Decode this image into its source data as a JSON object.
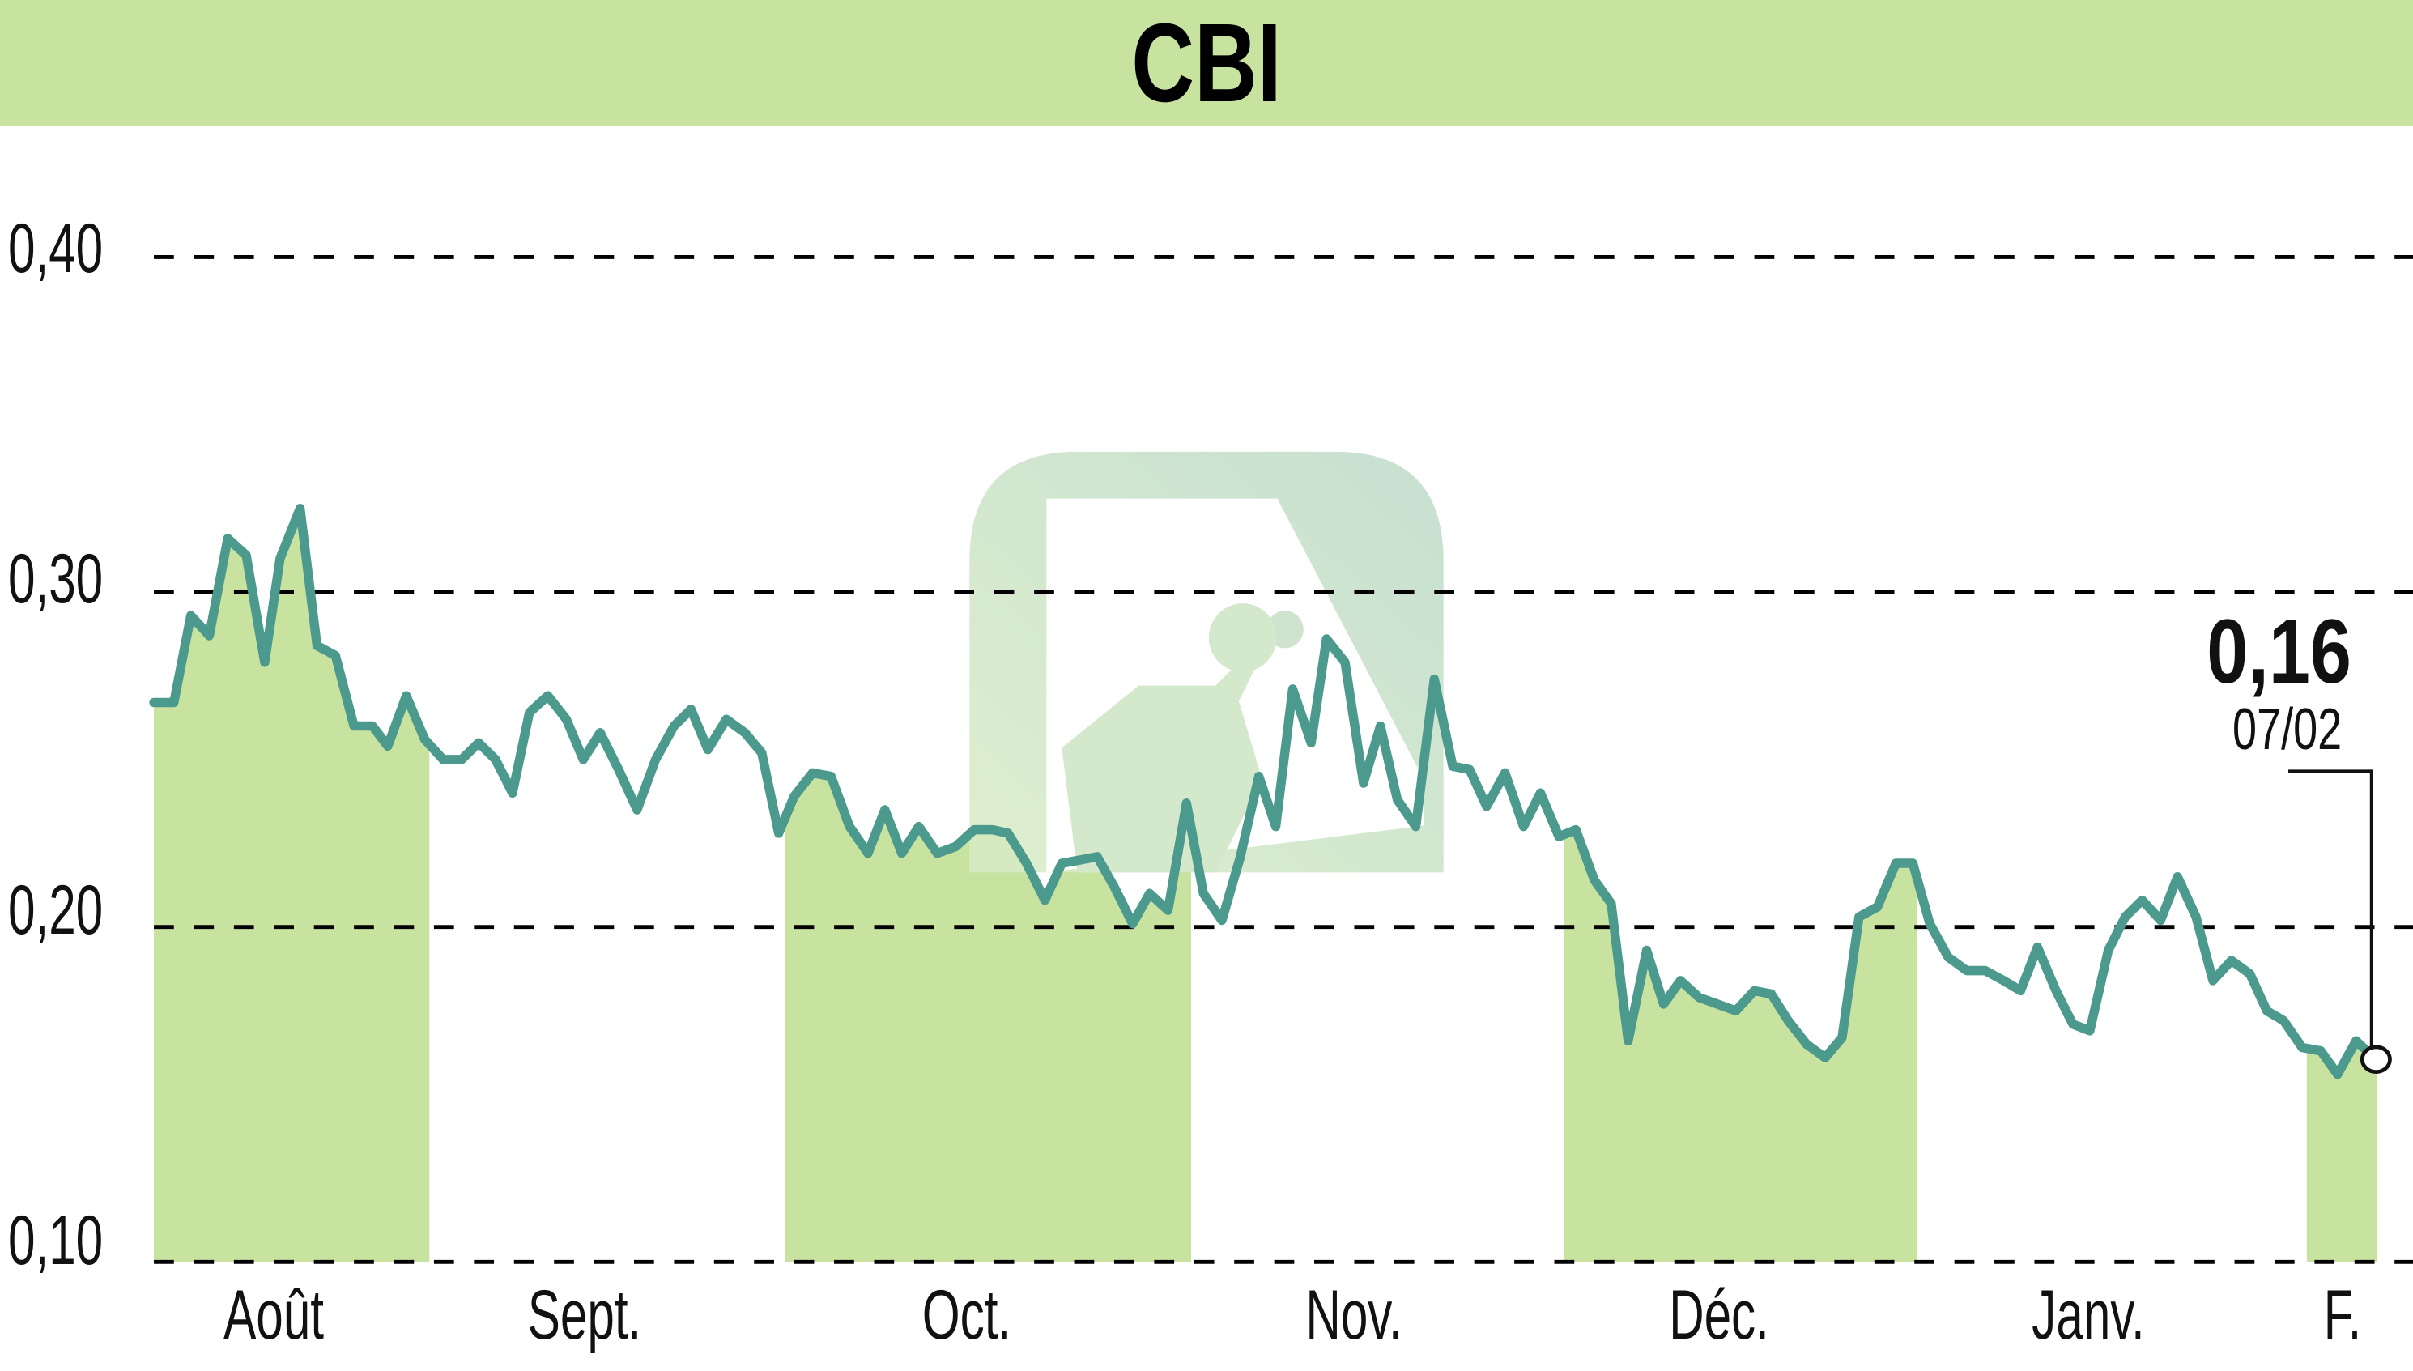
{
  "chart_data": {
    "type": "line",
    "title": "CBI",
    "xlabel": "",
    "ylabel": "",
    "ylim": [
      0.1,
      0.4
    ],
    "yticks": [
      "0,40",
      "0,30",
      "0,20",
      "0,10"
    ],
    "ytick_values": [
      0.4,
      0.3,
      0.2,
      0.1
    ],
    "grid": "horizontal dashed",
    "months": [
      {
        "label": "Août",
        "x": 178
      },
      {
        "label": "Sept.",
        "x": 380
      },
      {
        "label": "Oct.",
        "x": 628
      },
      {
        "label": "Nov.",
        "x": 880
      },
      {
        "label": "Déc.",
        "x": 1117
      },
      {
        "label": "Janv.",
        "x": 1357
      },
      {
        "label": "F.",
        "x": 1522
      }
    ],
    "shaded_bands": [
      [
        97,
        279
      ],
      [
        510,
        774
      ],
      [
        1016,
        1246
      ],
      [
        1499,
        1545
      ]
    ],
    "last_value": "0,16",
    "last_date": "07/02",
    "series": [
      {
        "name": "CBI",
        "points": [
          [
            100,
            0.267
          ],
          [
            113,
            0.267
          ],
          [
            124,
            0.293
          ],
          [
            136,
            0.287
          ],
          [
            148,
            0.316
          ],
          [
            160,
            0.311
          ],
          [
            172,
            0.279
          ],
          [
            182,
            0.31
          ],
          [
            195,
            0.325
          ],
          [
            206,
            0.284
          ],
          [
            218,
            0.281
          ],
          [
            230,
            0.26
          ],
          [
            242,
            0.26
          ],
          [
            252,
            0.254
          ],
          [
            264,
            0.269
          ],
          [
            276,
            0.256
          ],
          [
            288,
            0.25
          ],
          [
            300,
            0.25
          ],
          [
            311,
            0.255
          ],
          [
            322,
            0.25
          ],
          [
            333,
            0.24
          ],
          [
            344,
            0.264
          ],
          [
            356,
            0.269
          ],
          [
            368,
            0.262
          ],
          [
            379,
            0.25
          ],
          [
            390,
            0.258
          ],
          [
            402,
            0.247
          ],
          [
            414,
            0.235
          ],
          [
            426,
            0.25
          ],
          [
            438,
            0.26
          ],
          [
            449,
            0.265
          ],
          [
            460,
            0.253
          ],
          [
            472,
            0.262
          ],
          [
            484,
            0.258
          ],
          [
            495,
            0.252
          ],
          [
            506,
            0.228
          ],
          [
            516,
            0.239
          ],
          [
            528,
            0.246
          ],
          [
            540,
            0.245
          ],
          [
            552,
            0.23
          ],
          [
            564,
            0.222
          ],
          [
            575,
            0.235
          ],
          [
            586,
            0.222
          ],
          [
            597,
            0.23
          ],
          [
            609,
            0.222
          ],
          [
            621,
            0.224
          ],
          [
            633,
            0.229
          ],
          [
            645,
            0.229
          ],
          [
            655,
            0.228
          ],
          [
            667,
            0.219
          ],
          [
            679,
            0.208
          ],
          [
            690,
            0.219
          ],
          [
            702,
            0.22
          ],
          [
            713,
            0.221
          ],
          [
            724,
            0.212
          ],
          [
            736,
            0.201
          ],
          [
            747,
            0.21
          ],
          [
            759,
            0.205
          ],
          [
            771,
            0.237
          ],
          [
            782,
            0.21
          ],
          [
            794,
            0.202
          ],
          [
            806,
            0.221
          ],
          [
            818,
            0.245
          ],
          [
            829,
            0.23
          ],
          [
            840,
            0.271
          ],
          [
            852,
            0.255
          ],
          [
            862,
            0.286
          ],
          [
            874,
            0.279
          ],
          [
            886,
            0.243
          ],
          [
            897,
            0.26
          ],
          [
            908,
            0.238
          ],
          [
            920,
            0.23
          ],
          [
            932,
            0.274
          ],
          [
            944,
            0.248
          ],
          [
            955,
            0.247
          ],
          [
            966,
            0.236
          ],
          [
            978,
            0.246
          ],
          [
            990,
            0.23
          ],
          [
            1001,
            0.24
          ],
          [
            1013,
            0.227
          ],
          [
            1024,
            0.229
          ],
          [
            1036,
            0.214
          ],
          [
            1047,
            0.207
          ],
          [
            1058,
            0.166
          ],
          [
            1070,
            0.193
          ],
          [
            1081,
            0.177
          ],
          [
            1092,
            0.184
          ],
          [
            1104,
            0.179
          ],
          [
            1116,
            0.177
          ],
          [
            1128,
            0.175
          ],
          [
            1140,
            0.181
          ],
          [
            1151,
            0.18
          ],
          [
            1162,
            0.172
          ],
          [
            1174,
            0.165
          ],
          [
            1186,
            0.161
          ],
          [
            1197,
            0.167
          ],
          [
            1208,
            0.203
          ],
          [
            1220,
            0.206
          ],
          [
            1232,
            0.219
          ],
          [
            1243,
            0.219
          ],
          [
            1254,
            0.201
          ],
          [
            1266,
            0.191
          ],
          [
            1278,
            0.187
          ],
          [
            1290,
            0.187
          ],
          [
            1302,
            0.184
          ],
          [
            1313,
            0.181
          ],
          [
            1324,
            0.194
          ],
          [
            1336,
            0.181
          ],
          [
            1347,
            0.171
          ],
          [
            1358,
            0.169
          ],
          [
            1370,
            0.193
          ],
          [
            1381,
            0.203
          ],
          [
            1392,
            0.208
          ],
          [
            1404,
            0.202
          ],
          [
            1415,
            0.215
          ],
          [
            1427,
            0.203
          ],
          [
            1438,
            0.184
          ],
          [
            1450,
            0.19
          ],
          [
            1462,
            0.186
          ],
          [
            1473,
            0.175
          ],
          [
            1484,
            0.172
          ],
          [
            1496,
            0.164
          ],
          [
            1508,
            0.163
          ],
          [
            1519,
            0.156
          ],
          [
            1531,
            0.166
          ],
          [
            1545,
            0.16
          ]
        ]
      }
    ]
  },
  "callout": {
    "value": "0,16",
    "date": "07/02"
  },
  "watermark": {
    "icon": "bull-logo-icon"
  }
}
